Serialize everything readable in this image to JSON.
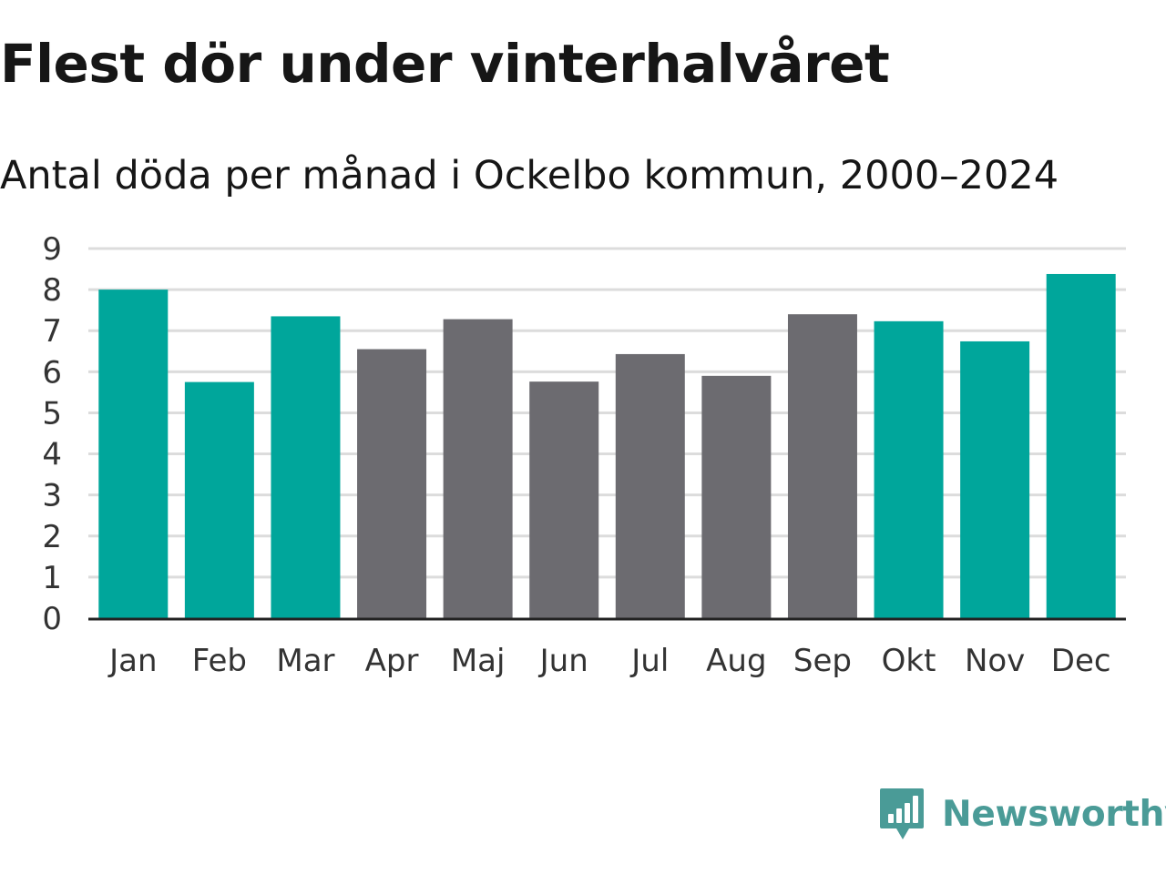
{
  "chart_data": {
    "type": "bar",
    "title": "Flest dör under vinterhalvåret",
    "subtitle": "Antal döda per månad i Ockelbo kommun, 2000–2024",
    "xlabel": "",
    "ylabel": "",
    "ylim": [
      0,
      9
    ],
    "yticks": [
      "0",
      "1",
      "2",
      "3",
      "4",
      "5",
      "6",
      "7",
      "8",
      "9"
    ],
    "grid": true,
    "categories": [
      "Jan",
      "Feb",
      "Mar",
      "Apr",
      "Maj",
      "Jun",
      "Jul",
      "Aug",
      "Sep",
      "Okt",
      "Nov",
      "Dec"
    ],
    "values": [
      8.0,
      5.75,
      7.35,
      6.55,
      7.28,
      5.76,
      6.43,
      5.9,
      7.4,
      7.23,
      6.74,
      8.38
    ],
    "highlight": [
      true,
      true,
      true,
      false,
      false,
      false,
      false,
      false,
      false,
      true,
      true,
      true
    ],
    "colors": {
      "highlight": "#00a69b",
      "default": "#6c6b70",
      "grid": "#dcdcdc",
      "axis": "#222222"
    }
  },
  "brand": {
    "name": "Newsworthy",
    "logo_icon": "bar-chart-speech-bubble-icon",
    "color": "#4a9b97"
  }
}
